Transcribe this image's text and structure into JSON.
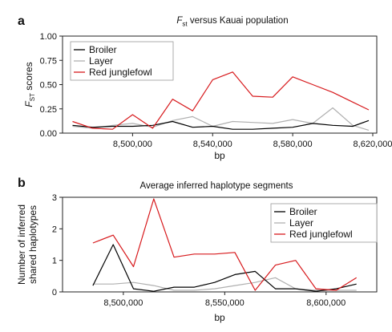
{
  "panels": [
    {
      "letter": "a",
      "title_prefix": "F",
      "title_sub": "st",
      "title_rest": " versus Kauai population",
      "chart_data": {
        "type": "line",
        "title": "Fst versus Kauai population",
        "xlabel": "bp",
        "ylabel_main": "F",
        "ylabel_sub": "ST",
        "ylabel_rest": " scores",
        "xlim": [
          8465000,
          8622000
        ],
        "ylim": [
          0,
          1
        ],
        "xticks": [
          8500000,
          8540000,
          8580000,
          8620000
        ],
        "xtick_labels": [
          "8,500,000",
          "8,540,000",
          "8,580,000",
          "8,620,000"
        ],
        "yticks": [
          0,
          0.25,
          0.5,
          0.75,
          1
        ],
        "ytick_labels": [
          "0.00",
          "0.25",
          "0.50",
          "0.75",
          "1.00"
        ],
        "grid": false,
        "legend_position": "top-left",
        "series": [
          {
            "name": "Broiler",
            "color": "#000000",
            "x": [
              8470000,
              8480000,
              8490000,
              8500000,
              8510000,
              8520000,
              8530000,
              8540000,
              8550000,
              8560000,
              8570000,
              8580000,
              8590000,
              8600000,
              8610000,
              8618000
            ],
            "y": [
              0.08,
              0.06,
              0.07,
              0.07,
              0.08,
              0.12,
              0.06,
              0.07,
              0.04,
              0.04,
              0.05,
              0.06,
              0.1,
              0.08,
              0.07,
              0.13
            ]
          },
          {
            "name": "Layer",
            "color": "#b0b0b0",
            "x": [
              8470000,
              8480000,
              8490000,
              8500000,
              8510000,
              8520000,
              8530000,
              8540000,
              8550000,
              8560000,
              8570000,
              8580000,
              8590000,
              8600000,
              8610000,
              8618000
            ],
            "y": [
              0.07,
              0.05,
              0.08,
              0.1,
              0.06,
              0.13,
              0.17,
              0.07,
              0.12,
              0.11,
              0.1,
              0.14,
              0.1,
              0.26,
              0.08,
              0.03
            ]
          },
          {
            "name": "Red junglefowl",
            "color": "#d7191c",
            "x": [
              8470000,
              8480000,
              8490000,
              8500000,
              8510000,
              8520000,
              8530000,
              8540000,
              8550000,
              8560000,
              8570000,
              8580000,
              8590000,
              8600000,
              8610000,
              8618000
            ],
            "y": [
              0.12,
              0.05,
              0.04,
              0.19,
              0.05,
              0.35,
              0.23,
              0.55,
              0.63,
              0.38,
              0.37,
              0.58,
              0.5,
              0.42,
              0.32,
              0.24
            ]
          }
        ]
      }
    },
    {
      "letter": "b",
      "title": "Average inferred haplotype segments",
      "chart_data": {
        "type": "line",
        "title": "Average inferred haplotype segments",
        "xlabel": "bp",
        "ylabel_line1": "Number of inferred",
        "ylabel_line2": "shared haplotypes",
        "xlim": [
          8470000,
          8625000
        ],
        "ylim": [
          0,
          3
        ],
        "xticks": [
          8500000,
          8550000,
          8600000
        ],
        "xtick_labels": [
          "8,500,000",
          "8,550,000",
          "8,600,000"
        ],
        "yticks": [
          0,
          1,
          2,
          3
        ],
        "ytick_labels": [
          "0",
          "1",
          "2",
          "3"
        ],
        "grid": false,
        "legend_position": "top-right",
        "series": [
          {
            "name": "Broiler",
            "color": "#000000",
            "x": [
              8485000,
              8495000,
              8505000,
              8515000,
              8525000,
              8535000,
              8545000,
              8555000,
              8565000,
              8575000,
              8585000,
              8595000,
              8605000,
              8615000
            ],
            "y": [
              0.2,
              1.5,
              0.1,
              0.02,
              0.15,
              0.15,
              0.3,
              0.55,
              0.65,
              0.1,
              0.1,
              0.02,
              0.1,
              0.25
            ]
          },
          {
            "name": "Layer",
            "color": "#b0b0b0",
            "x": [
              8485000,
              8495000,
              8505000,
              8515000,
              8525000,
              8535000,
              8545000,
              8555000,
              8565000,
              8575000,
              8585000,
              8595000,
              8605000,
              8615000
            ],
            "y": [
              0.25,
              0.25,
              0.3,
              0.2,
              0.05,
              0.05,
              0.1,
              0.2,
              0.3,
              0.45,
              0.1,
              0.05,
              0.05,
              0.05
            ]
          },
          {
            "name": "Red junglefowl",
            "color": "#d7191c",
            "x": [
              8485000,
              8495000,
              8505000,
              8515000,
              8525000,
              8535000,
              8545000,
              8555000,
              8565000,
              8575000,
              8585000,
              8595000,
              8605000,
              8615000
            ],
            "y": [
              1.55,
              1.8,
              0.8,
              2.95,
              1.1,
              1.2,
              1.2,
              1.25,
              0.05,
              0.85,
              1.0,
              0.1,
              0.05,
              0.45
            ]
          }
        ]
      }
    }
  ]
}
